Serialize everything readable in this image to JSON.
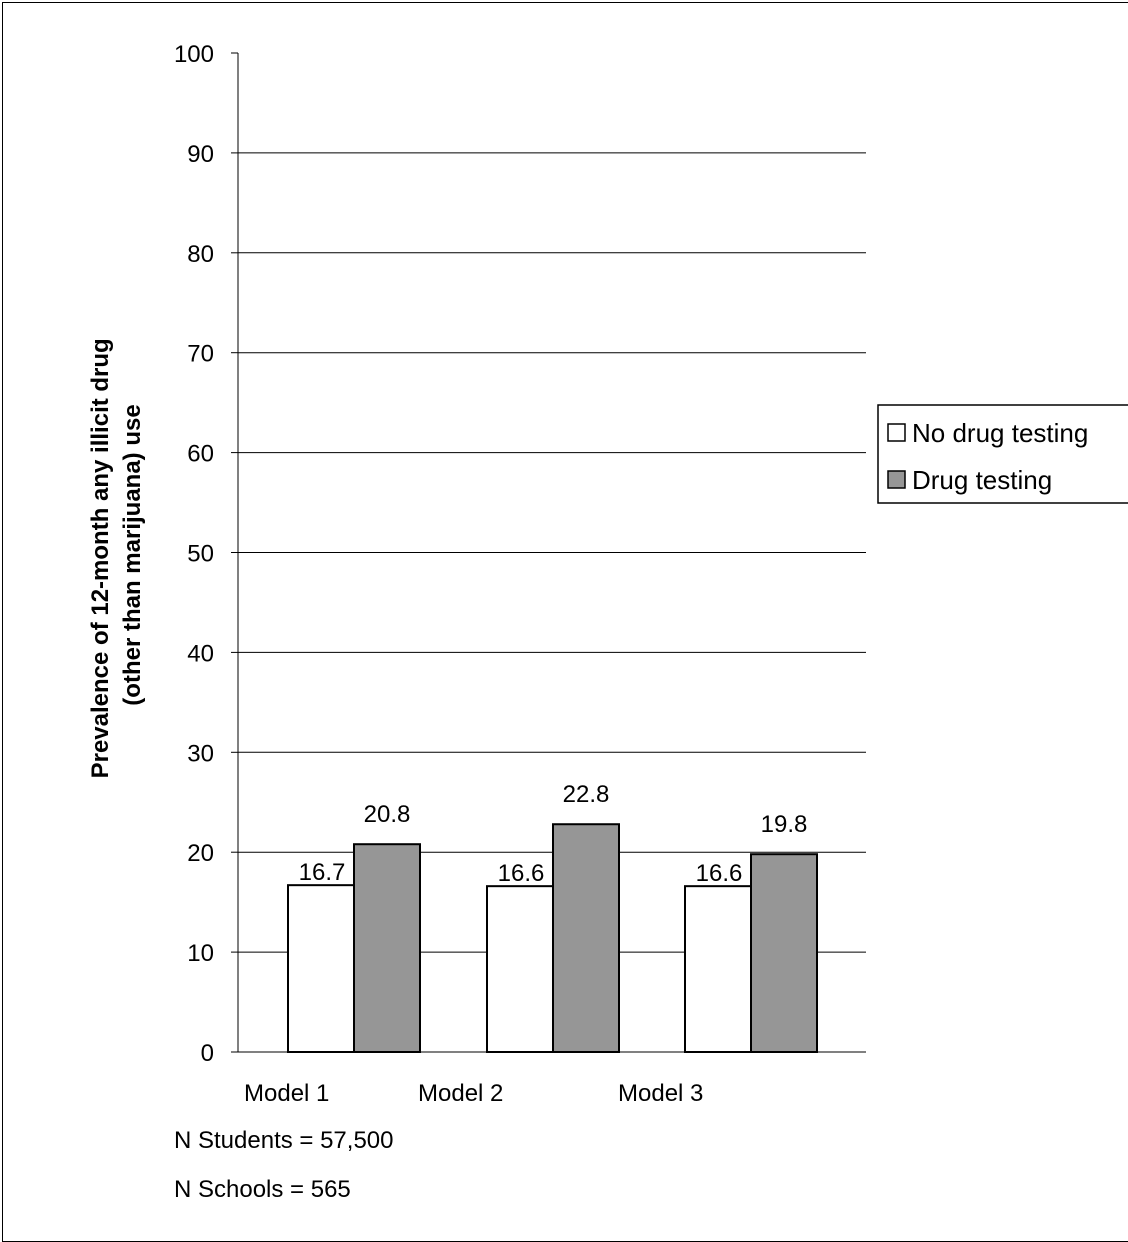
{
  "chart_data": {
    "type": "bar",
    "categories": [
      "Model 1",
      "Model 2",
      "Model 3"
    ],
    "series": [
      {
        "name": "No drug testing",
        "values": [
          16.7,
          16.6,
          16.6
        ],
        "color": "#ffffff"
      },
      {
        "name": "Drug testing",
        "values": [
          20.8,
          22.8,
          19.8
        ],
        "color": "#969696"
      }
    ],
    "data_labels": [
      [
        "16.7",
        "16.6",
        "16.6"
      ],
      [
        "20.8",
        "22.8",
        "19.8"
      ]
    ],
    "ylabel_lines": [
      "Prevalence of 12-month any illicit drug",
      "(other than marijuana) use"
    ],
    "ylim": [
      0,
      100
    ],
    "yticks": [
      0,
      10,
      20,
      30,
      40,
      50,
      60,
      70,
      80,
      90,
      100
    ],
    "ytick_labels": [
      "0",
      "10",
      "20",
      "30",
      "40",
      "50",
      "60",
      "70",
      "80",
      "90",
      "100"
    ],
    "grid": true,
    "legend_position": "right"
  },
  "footnotes": [
    "N Students = 57,500",
    "N Schools = 565"
  ]
}
